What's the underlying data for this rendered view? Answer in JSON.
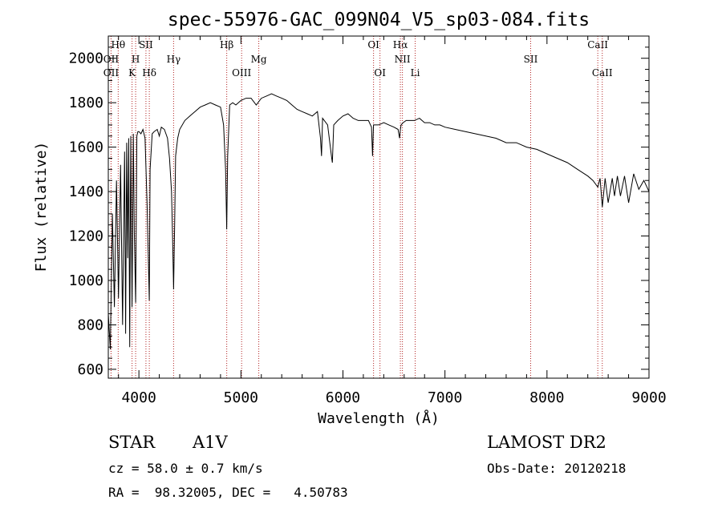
{
  "chart_data": {
    "type": "line",
    "title": "spec-55976-GAC_099N04_V5_sp03-084.fits",
    "xlabel": "Wavelength (Å)",
    "ylabel": "Flux (relative)",
    "xlim": [
      3700,
      9000
    ],
    "ylim": [
      560,
      2100
    ],
    "x_ticks": [
      4000,
      5000,
      6000,
      7000,
      8000,
      9000
    ],
    "y_ticks": [
      600,
      800,
      1000,
      1200,
      1400,
      1600,
      1800,
      2000
    ],
    "grid": false,
    "series": [
      {
        "x": [
          3700,
          3720,
          3740,
          3760,
          3780,
          3800,
          3820,
          3840,
          3860,
          3870,
          3880,
          3890,
          3900,
          3910,
          3920,
          3933,
          3945,
          3955,
          3968,
          3980,
          3990,
          4000,
          4020,
          4040,
          4060,
          4080,
          4095,
          4102,
          4110,
          4130,
          4150,
          4180,
          4200,
          4220,
          4250,
          4280,
          4300,
          4320,
          4330,
          4340,
          4350,
          4360,
          4380,
          4400,
          4450,
          4500,
          4550,
          4600,
          4650,
          4700,
          4750,
          4800,
          4830,
          4850,
          4861,
          4870,
          4890,
          4920,
          4950,
          5000,
          5050,
          5100,
          5150,
          5200,
          5250,
          5300,
          5350,
          5400,
          5450,
          5500,
          5550,
          5600,
          5650,
          5700,
          5750,
          5780,
          5790,
          5800,
          5850,
          5890,
          5896,
          5910,
          5950,
          6000,
          6050,
          6100,
          6150,
          6200,
          6250,
          6280,
          6290,
          6300,
          6320,
          6350,
          6400,
          6450,
          6500,
          6540,
          6555,
          6563,
          6570,
          6590,
          6620,
          6650,
          6700,
          6750,
          6800,
          6850,
          6900,
          6950,
          7000,
          7100,
          7200,
          7300,
          7400,
          7500,
          7600,
          7700,
          7800,
          7900,
          8000,
          8100,
          8200,
          8300,
          8400,
          8450,
          8498,
          8520,
          8542,
          8570,
          8600,
          8640,
          8662,
          8690,
          8720,
          8760,
          8800,
          8850,
          8900,
          8950,
          9000
        ],
        "y": [
          850,
          690,
          1300,
          880,
          1450,
          920,
          1520,
          800,
          1580,
          760,
          1620,
          1100,
          1640,
          700,
          1650,
          880,
          1660,
          1220,
          900,
          1650,
          1670,
          1670,
          1660,
          1680,
          1640,
          1350,
          1050,
          910,
          1500,
          1660,
          1670,
          1680,
          1650,
          1690,
          1680,
          1640,
          1550,
          1400,
          1200,
          960,
          1250,
          1560,
          1640,
          1680,
          1720,
          1740,
          1760,
          1780,
          1790,
          1800,
          1790,
          1780,
          1700,
          1500,
          1230,
          1560,
          1790,
          1800,
          1790,
          1810,
          1820,
          1820,
          1790,
          1820,
          1830,
          1840,
          1830,
          1820,
          1810,
          1790,
          1770,
          1760,
          1750,
          1740,
          1760,
          1640,
          1560,
          1730,
          1700,
          1550,
          1530,
          1700,
          1720,
          1740,
          1750,
          1730,
          1720,
          1720,
          1720,
          1690,
          1560,
          1700,
          1700,
          1700,
          1710,
          1700,
          1690,
          1680,
          1640,
          1680,
          1700,
          1710,
          1720,
          1720,
          1720,
          1730,
          1710,
          1710,
          1700,
          1700,
          1690,
          1680,
          1670,
          1660,
          1650,
          1640,
          1620,
          1620,
          1600,
          1590,
          1570,
          1550,
          1530,
          1500,
          1470,
          1450,
          1420,
          1460,
          1330,
          1460,
          1350,
          1460,
          1380,
          1470,
          1380,
          1470,
          1350,
          1480,
          1410,
          1450,
          1400
        ]
      }
    ],
    "line_markers": [
      {
        "wl": 3797,
        "label": "Hθ",
        "row": 0
      },
      {
        "wl": 3727,
        "label": "OII",
        "row": 1
      },
      {
        "wl": 3727,
        "label": "OII",
        "row": 2
      },
      {
        "wl": 3968,
        "label": "H",
        "row": 1
      },
      {
        "wl": 3933,
        "label": "K",
        "row": 2
      },
      {
        "wl": 4069,
        "label": "SII",
        "row": 0
      },
      {
        "wl": 4102,
        "label": "Hδ",
        "row": 2
      },
      {
        "wl": 4340,
        "label": "Hγ",
        "row": 1
      },
      {
        "wl": 4861,
        "label": "Hβ",
        "row": 0
      },
      {
        "wl": 5007,
        "label": "OIII",
        "row": 2
      },
      {
        "wl": 5175,
        "label": "Mg",
        "row": 1
      },
      {
        "wl": 6300,
        "label": "OI",
        "row": 0
      },
      {
        "wl": 6363,
        "label": "OI",
        "row": 2
      },
      {
        "wl": 6563,
        "label": "Hα",
        "row": 0
      },
      {
        "wl": 6583,
        "label": "NII",
        "row": 1
      },
      {
        "wl": 6708,
        "label": "Li",
        "row": 2
      },
      {
        "wl": 7840,
        "label": "SII",
        "row": 1
      },
      {
        "wl": 8498,
        "label": "CaII",
        "row": 0
      },
      {
        "wl": 8542,
        "label": "CaII",
        "row": 2
      }
    ],
    "marker_color": "#b22222"
  },
  "info": {
    "object_class": "STAR",
    "subclass": "A1V",
    "survey": "LAMOST DR2",
    "redshift": "cz = 58.0 ± 0.7 km/s",
    "obs_date": "Obs-Date: 20120218",
    "coords": "RA =  98.32005, DEC =   4.50783"
  }
}
